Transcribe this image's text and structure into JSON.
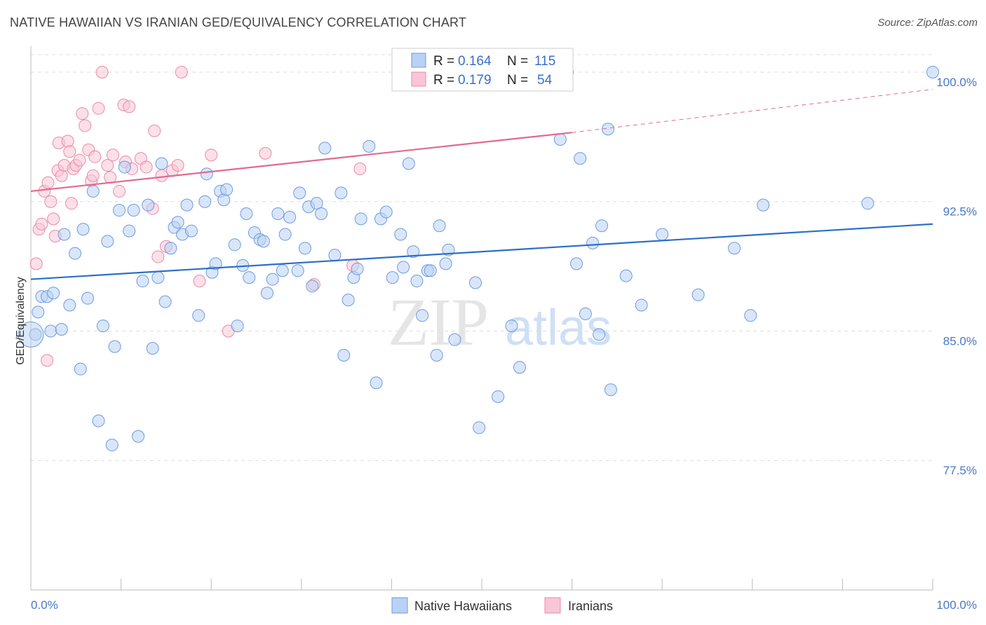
{
  "title": "NATIVE HAWAIIAN VS IRANIAN GED/EQUIVALENCY CORRELATION CHART",
  "source": "Source: ZipAtlas.com",
  "watermark": {
    "zip": "ZIP",
    "atlas": "atlas"
  },
  "colors": {
    "blue_fill": "#b9d1f4",
    "blue_stroke": "#6d9be0",
    "blue_line": "#2b6fca",
    "pink_fill": "#f8c6d6",
    "pink_stroke": "#ea8aaa",
    "pink_line": "#e2698f",
    "grid": "#dddddd",
    "axis_label": "#4a78c8"
  },
  "legend": {
    "rows": [
      {
        "r_label": "R =",
        "r_value": "0.164",
        "n_label": "N =",
        "n_value": "115"
      },
      {
        "r_label": "R =",
        "r_value": "0.179",
        "n_label": "N =",
        "n_value": "54"
      }
    ]
  },
  "bottom_legend": [
    "Native Hawaiians",
    "Iranians"
  ],
  "chart_data": {
    "type": "scatter",
    "xlabel": "",
    "ylabel": "GED/Equivalency",
    "xlim": [
      0,
      100
    ],
    "ylim": [
      70.0,
      101.5
    ],
    "x_tick_labels": [
      "0.0%",
      "100.0%"
    ],
    "y_ticks": [
      77.5,
      85.0,
      92.5,
      100.0
    ],
    "y_tick_labels": [
      "77.5%",
      "85.0%",
      "92.5%",
      "100.0%"
    ],
    "grid": true,
    "legend_position": "top-center",
    "series": [
      {
        "name": "Native Hawaiians",
        "trend": [
          [
            0,
            88.0
          ],
          [
            100,
            91.2
          ]
        ],
        "points": [
          [
            0.5,
            84.8
          ],
          [
            0.8,
            86.1
          ],
          [
            1.2,
            87.0
          ],
          [
            1.8,
            87.0
          ],
          [
            2.2,
            85.0
          ],
          [
            2.5,
            87.2
          ],
          [
            3.4,
            85.1
          ],
          [
            3.7,
            90.6
          ],
          [
            4.3,
            86.5
          ],
          [
            4.9,
            89.5
          ],
          [
            5.5,
            82.8
          ],
          [
            5.8,
            90.9
          ],
          [
            6.3,
            86.9
          ],
          [
            6.9,
            93.1
          ],
          [
            7.5,
            79.8
          ],
          [
            8.0,
            85.3
          ],
          [
            8.5,
            90.2
          ],
          [
            9.0,
            78.4
          ],
          [
            9.3,
            84.1
          ],
          [
            9.8,
            92.0
          ],
          [
            10.4,
            94.5
          ],
          [
            10.9,
            90.8
          ],
          [
            11.4,
            92.0
          ],
          [
            11.9,
            78.9
          ],
          [
            12.4,
            87.9
          ],
          [
            13.0,
            92.3
          ],
          [
            13.5,
            84.0
          ],
          [
            14.1,
            88.1
          ],
          [
            14.5,
            94.7
          ],
          [
            14.9,
            86.7
          ],
          [
            15.5,
            89.8
          ],
          [
            15.9,
            91.0
          ],
          [
            16.3,
            91.3
          ],
          [
            16.8,
            90.6
          ],
          [
            17.3,
            92.3
          ],
          [
            17.8,
            90.8
          ],
          [
            18.6,
            85.9
          ],
          [
            19.3,
            92.5
          ],
          [
            19.5,
            94.1
          ],
          [
            20.1,
            88.4
          ],
          [
            20.5,
            88.9
          ],
          [
            21.0,
            93.1
          ],
          [
            21.4,
            92.6
          ],
          [
            21.7,
            93.2
          ],
          [
            22.6,
            90.0
          ],
          [
            22.9,
            85.3
          ],
          [
            23.5,
            88.8
          ],
          [
            23.9,
            91.8
          ],
          [
            24.2,
            88.1
          ],
          [
            24.8,
            90.7
          ],
          [
            25.4,
            90.3
          ],
          [
            25.8,
            90.2
          ],
          [
            26.2,
            87.2
          ],
          [
            26.8,
            88.0
          ],
          [
            27.4,
            91.8
          ],
          [
            27.9,
            88.5
          ],
          [
            28.2,
            90.6
          ],
          [
            28.7,
            91.6
          ],
          [
            29.6,
            88.5
          ],
          [
            29.8,
            93.0
          ],
          [
            30.4,
            89.8
          ],
          [
            30.8,
            92.2
          ],
          [
            31.2,
            87.6
          ],
          [
            31.7,
            92.4
          ],
          [
            32.2,
            91.8
          ],
          [
            32.6,
            95.6
          ],
          [
            33.7,
            89.4
          ],
          [
            34.4,
            93.0
          ],
          [
            34.7,
            83.6
          ],
          [
            35.2,
            86.8
          ],
          [
            35.8,
            88.1
          ],
          [
            36.2,
            88.6
          ],
          [
            36.6,
            91.5
          ],
          [
            37.5,
            95.7
          ],
          [
            38.3,
            82.0
          ],
          [
            38.8,
            91.5
          ],
          [
            39.4,
            91.9
          ],
          [
            40.1,
            88.1
          ],
          [
            41.0,
            90.6
          ],
          [
            41.3,
            88.7
          ],
          [
            41.9,
            94.7
          ],
          [
            42.4,
            89.6
          ],
          [
            42.8,
            87.9
          ],
          [
            43.4,
            85.9
          ],
          [
            44.0,
            88.5
          ],
          [
            44.3,
            88.5
          ],
          [
            45.0,
            83.6
          ],
          [
            45.3,
            91.1
          ],
          [
            46.0,
            88.9
          ],
          [
            46.3,
            89.7
          ],
          [
            47.0,
            84.5
          ],
          [
            49.7,
            79.4
          ],
          [
            49.3,
            87.8
          ],
          [
            51.8,
            81.2
          ],
          [
            53.3,
            85.3
          ],
          [
            54.2,
            82.9
          ],
          [
            58.7,
            96.1
          ],
          [
            60.5,
            88.9
          ],
          [
            60.9,
            95.0
          ],
          [
            61.5,
            86.0
          ],
          [
            62.3,
            90.1
          ],
          [
            63.0,
            84.8
          ],
          [
            63.3,
            91.1
          ],
          [
            64.0,
            96.7
          ],
          [
            64.3,
            81.6
          ],
          [
            66.0,
            88.2
          ],
          [
            67.7,
            86.5
          ],
          [
            70.0,
            90.6
          ],
          [
            74.0,
            87.1
          ],
          [
            78.0,
            89.8
          ],
          [
            79.8,
            85.9
          ],
          [
            81.2,
            92.3
          ],
          [
            92.8,
            92.4
          ],
          [
            100.0,
            100.0
          ],
          [
            59.5,
            100.0
          ]
        ]
      },
      {
        "name": "Iranians",
        "trend": [
          [
            0,
            93.1
          ],
          [
            60,
            96.5
          ]
        ],
        "trend_dashed": [
          [
            60,
            96.5
          ],
          [
            100,
            99.0
          ]
        ],
        "points": [
          [
            0.6,
            88.9
          ],
          [
            0.9,
            90.9
          ],
          [
            1.2,
            91.2
          ],
          [
            1.5,
            93.1
          ],
          [
            1.8,
            83.3
          ],
          [
            1.9,
            93.6
          ],
          [
            2.2,
            92.5
          ],
          [
            2.5,
            91.5
          ],
          [
            2.7,
            90.5
          ],
          [
            3.0,
            94.3
          ],
          [
            3.1,
            95.9
          ],
          [
            3.4,
            94.0
          ],
          [
            3.7,
            94.6
          ],
          [
            4.1,
            96.0
          ],
          [
            4.3,
            95.4
          ],
          [
            4.5,
            92.4
          ],
          [
            4.7,
            94.4
          ],
          [
            5.0,
            94.6
          ],
          [
            5.4,
            94.9
          ],
          [
            5.7,
            97.6
          ],
          [
            6.0,
            96.9
          ],
          [
            6.4,
            95.5
          ],
          [
            6.7,
            93.7
          ],
          [
            6.9,
            94.0
          ],
          [
            7.1,
            95.1
          ],
          [
            7.5,
            97.9
          ],
          [
            7.9,
            100.0
          ],
          [
            8.5,
            94.6
          ],
          [
            8.8,
            93.9
          ],
          [
            9.1,
            95.2
          ],
          [
            9.8,
            93.1
          ],
          [
            10.3,
            98.1
          ],
          [
            10.5,
            94.8
          ],
          [
            10.9,
            98.0
          ],
          [
            11.2,
            94.4
          ],
          [
            12.2,
            95.0
          ],
          [
            12.8,
            94.5
          ],
          [
            13.5,
            92.1
          ],
          [
            13.7,
            96.6
          ],
          [
            14.1,
            89.3
          ],
          [
            14.5,
            94.0
          ],
          [
            15.0,
            89.9
          ],
          [
            15.7,
            94.3
          ],
          [
            16.3,
            94.6
          ],
          [
            16.7,
            100.0
          ],
          [
            18.7,
            87.9
          ],
          [
            20.0,
            95.2
          ],
          [
            21.9,
            85.0
          ],
          [
            26.0,
            95.3
          ],
          [
            31.4,
            87.7
          ],
          [
            35.7,
            88.8
          ],
          [
            36.5,
            94.4
          ],
          [
            52.3,
            100.0
          ],
          [
            52.7,
            99.8
          ]
        ]
      }
    ]
  }
}
